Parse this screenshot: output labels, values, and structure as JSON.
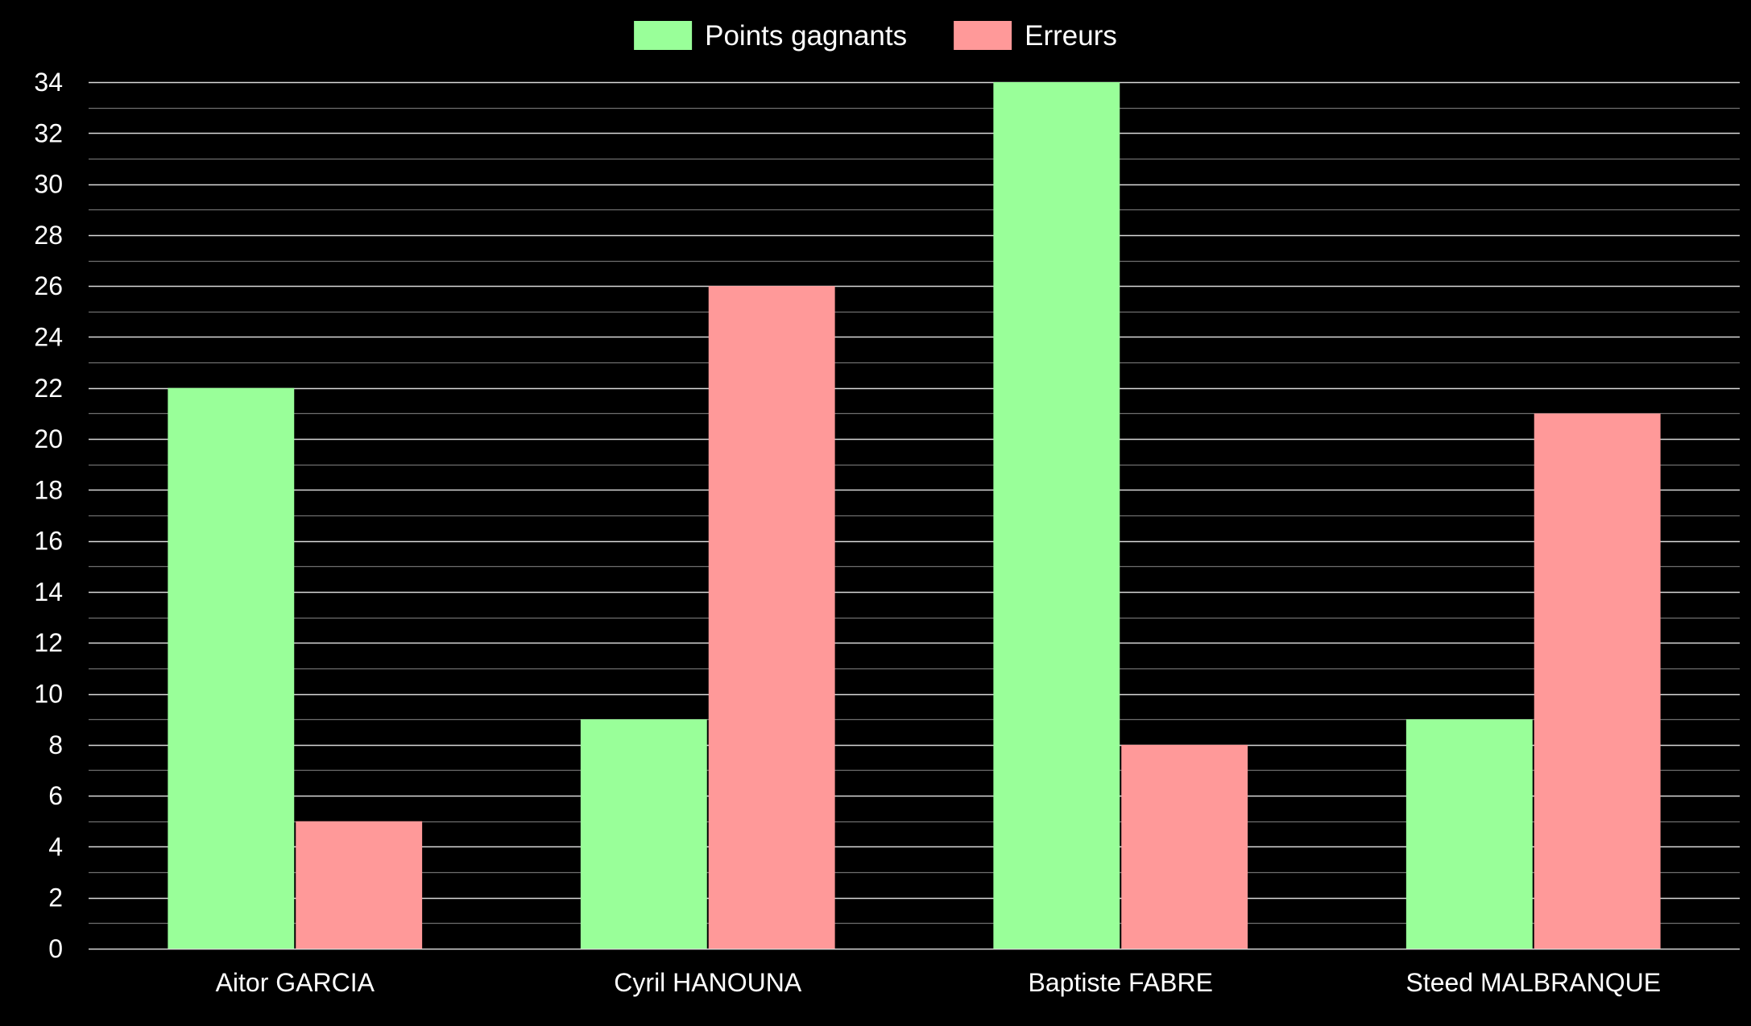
{
  "chart_data": {
    "type": "bar",
    "title": "",
    "xlabel": "",
    "ylabel": "",
    "categories": [
      "Aitor GARCIA",
      "Cyril HANOUNA",
      "Baptiste FABRE",
      "Steed MALBRANQUE"
    ],
    "series": [
      {
        "name": "Points gagnants",
        "color": "#99ff99",
        "values": [
          22,
          9,
          34,
          9
        ]
      },
      {
        "name": "Erreurs",
        "color": "#ff9999",
        "values": [
          5,
          26,
          8,
          21
        ]
      }
    ],
    "ylim": [
      0,
      34
    ],
    "major_tick_step": 2,
    "minor_tick_step": 1,
    "y_ticks": [
      "0",
      "2",
      "4",
      "6",
      "8",
      "10",
      "12",
      "14",
      "16",
      "18",
      "20",
      "22",
      "24",
      "26",
      "28",
      "30",
      "32",
      "34"
    ],
    "grid": true,
    "legend": "top-center",
    "background": "#000000",
    "grid_color_major": "#d9d9d9",
    "grid_color_minor": "#6e6e6e",
    "text_color": "#ffffff"
  }
}
